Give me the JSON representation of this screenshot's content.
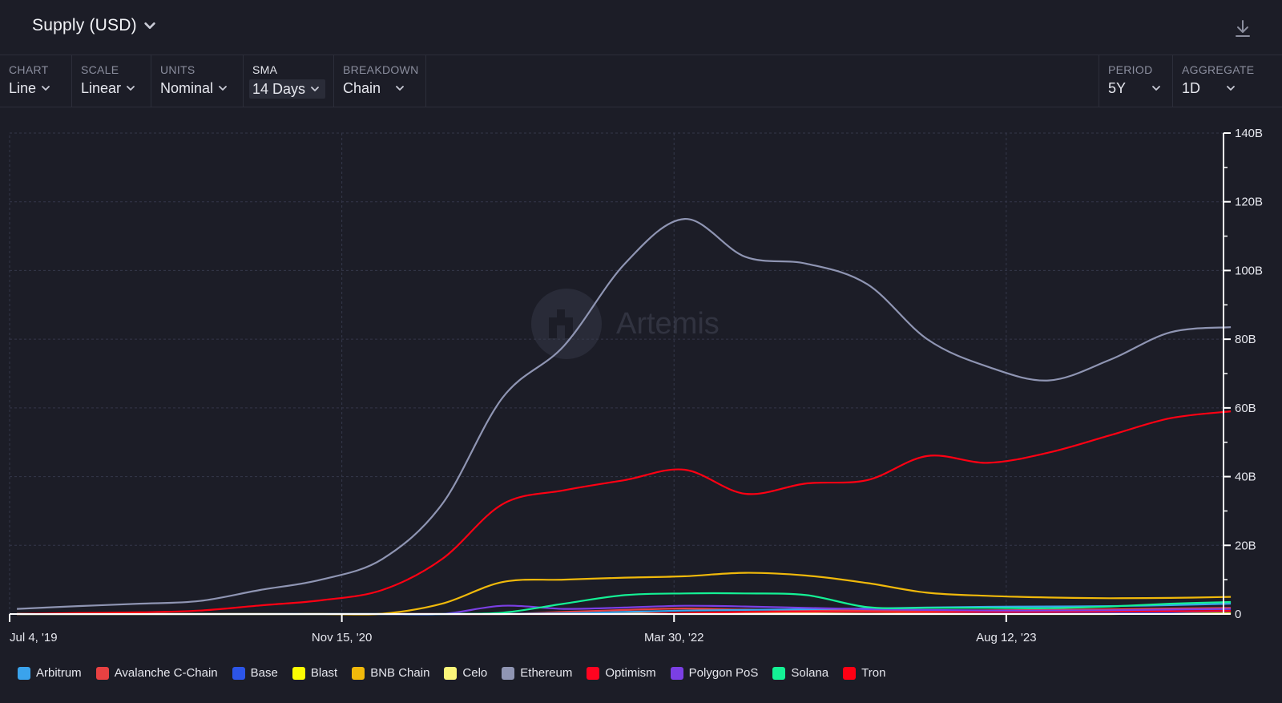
{
  "header": {
    "title": "Supply (USD)"
  },
  "controls": {
    "chart": {
      "label": "CHART",
      "value": "Line"
    },
    "scale": {
      "label": "SCALE",
      "value": "Linear"
    },
    "units": {
      "label": "UNITS",
      "value": "Nominal"
    },
    "sma": {
      "label": "SMA",
      "value": "14 Days"
    },
    "breakdown": {
      "label": "BREAKDOWN",
      "value": "Chain"
    },
    "period": {
      "label": "PERIOD",
      "value": "5Y"
    },
    "aggregate": {
      "label": "AGGREGATE",
      "value": "1D"
    }
  },
  "watermark": "Artemis",
  "chart_data": {
    "type": "line",
    "title": "Supply (USD)",
    "x_tick_labels": [
      "Jul 4, '19",
      "Nov 15, '20",
      "Mar 30, '22",
      "Aug 12, '23"
    ],
    "x_range": [
      "2019-07-04",
      "2024-07-04"
    ],
    "y_tick_labels": [
      "0",
      "20B",
      "40B",
      "60B",
      "80B",
      "100B",
      "120B",
      "140B"
    ],
    "ylim": [
      0,
      140
    ],
    "y_unit": "B",
    "grid": true,
    "legend_position": "bottom-left",
    "x": [
      "2019-07",
      "2019-10",
      "2020-01",
      "2020-04",
      "2020-07",
      "2020-10",
      "2021-01",
      "2021-04",
      "2021-07",
      "2021-10",
      "2022-01",
      "2022-04",
      "2022-07",
      "2022-10",
      "2023-01",
      "2023-04",
      "2023-07",
      "2023-10",
      "2024-01",
      "2024-04",
      "2024-07"
    ],
    "series": [
      {
        "name": "Arbitrum",
        "color": "#3aa3ec",
        "values": [
          0,
          0,
          0,
          0,
          0,
          0,
          0,
          0,
          0,
          0.2,
          0.6,
          1.0,
          1.2,
          1.4,
          1.6,
          1.9,
          2.1,
          2.2,
          2.3,
          2.6,
          3.0
        ]
      },
      {
        "name": "Avalanche C-Chain",
        "color": "#e84142",
        "values": [
          0,
          0,
          0,
          0,
          0,
          0,
          0,
          0,
          0,
          0.6,
          1.2,
          1.6,
          1.3,
          1.1,
          1.0,
          1.0,
          1.1,
          1.2,
          1.4,
          1.6,
          1.8
        ]
      },
      {
        "name": "Base",
        "color": "#2c55e8",
        "values": [
          0,
          0,
          0,
          0,
          0,
          0,
          0,
          0,
          0,
          0,
          0,
          0,
          0,
          0,
          0,
          0,
          0.1,
          0.2,
          0.3,
          0.5,
          0.8
        ]
      },
      {
        "name": "Blast",
        "color": "#fcfc03",
        "values": [
          0,
          0,
          0,
          0,
          0,
          0,
          0,
          0,
          0,
          0,
          0,
          0,
          0,
          0,
          0,
          0,
          0,
          0,
          0,
          0.1,
          0.2
        ]
      },
      {
        "name": "BNB Chain",
        "color": "#f0b90b",
        "values": [
          0,
          0,
          0,
          0,
          0,
          0,
          0.1,
          3.0,
          9.3,
          10.0,
          10.6,
          11.0,
          12.0,
          11.2,
          9.0,
          6.2,
          5.3,
          4.8,
          4.6,
          4.7,
          5.0
        ]
      },
      {
        "name": "Celo",
        "color": "#fbf67a",
        "values": [
          0,
          0,
          0,
          0,
          0,
          0,
          0,
          0,
          0,
          0.1,
          0.2,
          0.2,
          0.2,
          0.2,
          0.1,
          0.1,
          0.1,
          0.1,
          0.1,
          0.1,
          0.1
        ]
      },
      {
        "name": "Ethereum",
        "color": "#8f95b3",
        "values": [
          1.5,
          2.3,
          3.0,
          3.8,
          7.0,
          10.0,
          16.0,
          32.0,
          63.0,
          78.0,
          102.0,
          115.0,
          104.0,
          102.0,
          96.0,
          80.0,
          72.0,
          68.0,
          74.0,
          82.0,
          83.5
        ]
      },
      {
        "name": "Optimism",
        "color": "#ff0420",
        "values": [
          0,
          0,
          0,
          0,
          0,
          0,
          0,
          0,
          0,
          0,
          0,
          0.3,
          0.6,
          0.7,
          0.7,
          0.6,
          0.6,
          0.6,
          0.7,
          0.8,
          0.9
        ]
      },
      {
        "name": "Polygon PoS",
        "color": "#7b3fe4",
        "values": [
          0,
          0,
          0,
          0,
          0,
          0,
          0,
          0,
          2.4,
          1.5,
          1.9,
          2.4,
          2.2,
          1.8,
          1.4,
          1.2,
          1.0,
          1.0,
          1.1,
          1.3,
          1.5
        ]
      },
      {
        "name": "Solana",
        "color": "#14f195",
        "values": [
          0,
          0,
          0,
          0,
          0,
          0,
          0,
          0,
          0.4,
          3.0,
          5.5,
          6.0,
          6.0,
          5.5,
          2.0,
          1.8,
          1.8,
          1.7,
          2.2,
          3.0,
          3.5
        ]
      },
      {
        "name": "Tron",
        "color": "#ff0013",
        "values": [
          0,
          0.3,
          0.5,
          1.0,
          2.5,
          4.0,
          7.0,
          16.0,
          32.0,
          36.0,
          39.0,
          42.0,
          35.0,
          38.0,
          39.0,
          46.0,
          44.0,
          47.0,
          52.0,
          57.0,
          59.0
        ]
      }
    ]
  }
}
